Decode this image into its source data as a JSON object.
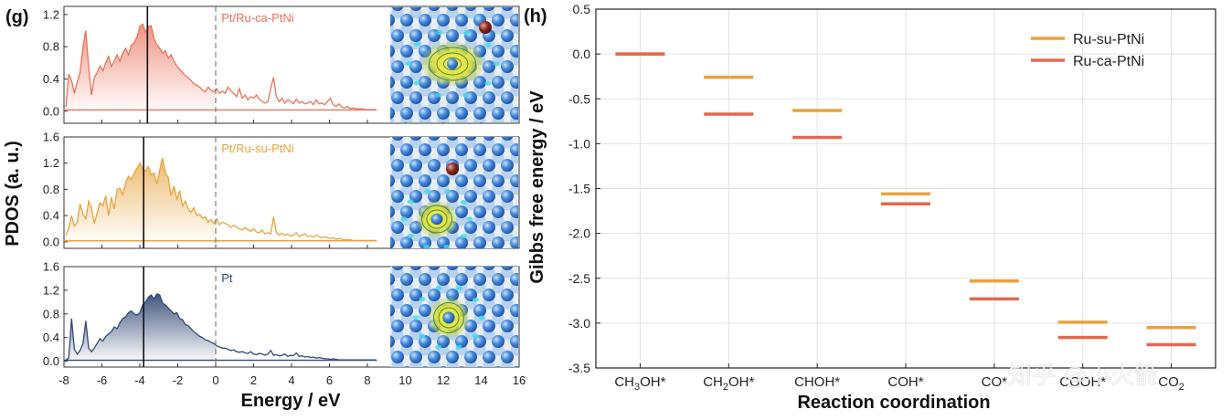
{
  "chart_data": [
    {
      "type": "line",
      "panel_label": "(g)",
      "title": "",
      "xlabel": "Energy / eV",
      "ylabel": "PDOS (a. u.)",
      "xlim": [
        -8,
        16
      ],
      "x_ticks": [
        "-8",
        "-6",
        "-4",
        "-2",
        "0",
        "2",
        "4",
        "6",
        "8",
        "10",
        "12",
        "14",
        "16"
      ],
      "fermi_level": 0,
      "subplots": [
        {
          "name": "Pt/Ru-ca-PtNi",
          "color": "#e9725a",
          "ylim": [
            -0.15,
            1.3
          ],
          "y_ticks": [
            "0.0",
            "0.4",
            "0.8",
            "1.2"
          ],
          "d_band_center": -3.6,
          "x": [
            -7.9,
            -7.75,
            -7.6,
            -7.45,
            -7.3,
            -7.15,
            -7,
            -6.85,
            -6.7,
            -6.55,
            -6.4,
            -6.25,
            -6.1,
            -5.95,
            -5.8,
            -5.65,
            -5.5,
            -5.35,
            -5.2,
            -5.05,
            -4.9,
            -4.75,
            -4.6,
            -4.45,
            -4.3,
            -4.15,
            -4,
            -3.85,
            -3.7,
            -3.55,
            -3.4,
            -3.25,
            -3.1,
            -2.95,
            -2.8,
            -2.65,
            -2.5,
            -2.35,
            -2.2,
            -2.05,
            -1.9,
            -1.75,
            -1.6,
            -1.45,
            -1.3,
            -1.15,
            -1,
            -0.85,
            -0.7,
            -0.55,
            -0.4,
            -0.25,
            -0.1,
            0.05,
            0.2,
            0.35,
            0.5,
            0.65,
            0.8,
            0.95,
            1.1,
            1.25,
            1.4,
            1.55,
            1.7,
            1.85,
            2,
            2.15,
            2.3,
            2.45,
            2.6,
            2.75,
            2.9,
            3.05,
            3.2,
            3.35,
            3.5,
            3.65,
            3.8,
            3.95,
            4.1,
            4.25,
            4.4,
            4.55,
            4.7,
            4.85,
            5,
            5.15,
            5.3,
            5.45,
            5.6,
            5.75,
            5.9,
            6.05,
            6.2,
            6.35,
            6.5,
            6.65,
            6.8,
            6.95,
            7.1,
            7.25,
            7.4,
            7.55,
            7.7,
            7.85,
            8,
            8.15,
            8.3,
            8.45
          ],
          "y": [
            0.05,
            0.46,
            0.38,
            0.22,
            0.36,
            0.48,
            0.8,
            1.0,
            0.55,
            0.2,
            0.42,
            0.48,
            0.56,
            0.5,
            0.6,
            0.68,
            0.55,
            0.62,
            0.7,
            0.62,
            0.72,
            0.78,
            0.7,
            0.82,
            0.85,
            0.92,
            1.05,
            1.08,
            0.98,
            1.05,
            1.06,
            0.9,
            0.82,
            0.78,
            0.72,
            0.75,
            0.66,
            0.7,
            0.62,
            0.56,
            0.52,
            0.48,
            0.44,
            0.42,
            0.38,
            0.34,
            0.32,
            0.3,
            0.26,
            0.24,
            0.3,
            0.26,
            0.24,
            0.28,
            0.22,
            0.25,
            0.22,
            0.3,
            0.25,
            0.22,
            0.18,
            0.28,
            0.16,
            0.2,
            0.14,
            0.18,
            0.16,
            0.2,
            0.15,
            0.12,
            0.1,
            0.12,
            0.28,
            0.42,
            0.18,
            0.12,
            0.16,
            0.1,
            0.14,
            0.12,
            0.09,
            0.15,
            0.1,
            0.12,
            0.09,
            0.1,
            0.12,
            0.08,
            0.14,
            0.09,
            0.1,
            0.08,
            0.12,
            0.16,
            0.08,
            0.06,
            0.09,
            0.05,
            0.04,
            0.06,
            0.03,
            0.04,
            0.03,
            0.03,
            0.03,
            0.02,
            0.02,
            0.02,
            0.02,
            0.02
          ],
          "baseline_end_x": 8.5
        },
        {
          "name": "Pt/Ru-su-PtNi",
          "color": "#e8a33d",
          "ylim": [
            -0.1,
            1.6
          ],
          "y_ticks": [
            "0.0",
            "0.4",
            "0.8",
            "1.2",
            "1.6"
          ],
          "d_band_center": -3.8,
          "x": [
            -7.9,
            -7.75,
            -7.6,
            -7.45,
            -7.3,
            -7.15,
            -7,
            -6.85,
            -6.7,
            -6.55,
            -6.4,
            -6.25,
            -6.1,
            -5.95,
            -5.8,
            -5.65,
            -5.5,
            -5.35,
            -5.2,
            -5.05,
            -4.9,
            -4.75,
            -4.6,
            -4.45,
            -4.3,
            -4.15,
            -4,
            -3.85,
            -3.7,
            -3.55,
            -3.4,
            -3.25,
            -3.1,
            -2.95,
            -2.8,
            -2.65,
            -2.5,
            -2.35,
            -2.2,
            -2.05,
            -1.9,
            -1.75,
            -1.6,
            -1.45,
            -1.3,
            -1.15,
            -1,
            -0.85,
            -0.7,
            -0.55,
            -0.4,
            -0.25,
            -0.1,
            0.05,
            0.2,
            0.35,
            0.5,
            0.65,
            0.8,
            0.95,
            1.1,
            1.25,
            1.4,
            1.55,
            1.7,
            1.85,
            2,
            2.15,
            2.3,
            2.45,
            2.6,
            2.75,
            2.9,
            3.05,
            3.2,
            3.35,
            3.5,
            3.65,
            3.8,
            3.95,
            4.1,
            4.25,
            4.4,
            4.55,
            4.7,
            4.85,
            5,
            5.15,
            5.3,
            5.45,
            5.6,
            5.75,
            5.9,
            6.05,
            6.2,
            6.35,
            6.5,
            6.65,
            6.8,
            6.95,
            7.1,
            7.25,
            7.4,
            7.55,
            7.7,
            7.85,
            8,
            8.15,
            8.3,
            8.45
          ],
          "y": [
            0.1,
            0.2,
            0.4,
            0.24,
            0.3,
            0.58,
            0.42,
            0.35,
            0.62,
            0.52,
            0.28,
            0.44,
            0.6,
            0.55,
            0.7,
            0.4,
            0.68,
            0.5,
            0.8,
            0.82,
            0.72,
            0.9,
            1.0,
            0.95,
            1.05,
            1.12,
            1.2,
            1.12,
            1.08,
            1.15,
            1.02,
            1.05,
            0.88,
            1.1,
            1.28,
            1.05,
            0.98,
            0.7,
            0.85,
            0.65,
            0.78,
            0.55,
            0.62,
            0.5,
            0.45,
            0.52,
            0.4,
            0.42,
            0.36,
            0.38,
            0.3,
            0.34,
            0.28,
            0.35,
            0.26,
            0.3,
            0.28,
            0.26,
            0.22,
            0.25,
            0.22,
            0.2,
            0.18,
            0.22,
            0.18,
            0.16,
            0.2,
            0.15,
            0.14,
            0.18,
            0.12,
            0.14,
            0.12,
            0.38,
            0.14,
            0.1,
            0.13,
            0.1,
            0.12,
            0.09,
            0.1,
            0.14,
            0.08,
            0.1,
            0.12,
            0.08,
            0.09,
            0.07,
            0.1,
            0.08,
            0.06,
            0.08,
            0.06,
            0.05,
            0.06,
            0.04,
            0.05,
            0.04,
            0.03,
            0.03,
            0.03,
            0.02,
            0.02,
            0.02,
            0.02,
            0.02,
            0.02,
            0.02,
            0.02,
            0.02
          ],
          "baseline_end_x": 8.5
        },
        {
          "name": "Pt",
          "color": "#2f4a78",
          "ylim": [
            -0.1,
            1.6
          ],
          "y_ticks": [
            "0.0",
            "0.4",
            "0.8",
            "1.2",
            "1.6"
          ],
          "d_band_center": -3.8,
          "x": [
            -7.9,
            -7.75,
            -7.6,
            -7.45,
            -7.3,
            -7.15,
            -7,
            -6.85,
            -6.7,
            -6.55,
            -6.4,
            -6.25,
            -6.1,
            -5.95,
            -5.8,
            -5.65,
            -5.5,
            -5.35,
            -5.2,
            -5.05,
            -4.9,
            -4.75,
            -4.6,
            -4.45,
            -4.3,
            -4.15,
            -4,
            -3.85,
            -3.7,
            -3.55,
            -3.4,
            -3.25,
            -3.1,
            -2.95,
            -2.8,
            -2.65,
            -2.5,
            -2.35,
            -2.2,
            -2.05,
            -1.9,
            -1.75,
            -1.6,
            -1.45,
            -1.3,
            -1.15,
            -1,
            -0.85,
            -0.7,
            -0.55,
            -0.4,
            -0.25,
            -0.1,
            0.05,
            0.2,
            0.35,
            0.5,
            0.65,
            0.8,
            0.95,
            1.1,
            1.25,
            1.4,
            1.55,
            1.7,
            1.85,
            2,
            2.15,
            2.3,
            2.45,
            2.6,
            2.75,
            2.9,
            3.05,
            3.2,
            3.35,
            3.5,
            3.65,
            3.8,
            3.95,
            4.1,
            4.25,
            4.4,
            4.55,
            4.7,
            4.85,
            5,
            5.15,
            5.3,
            5.45,
            5.6,
            5.75,
            5.9,
            6.05,
            6.2,
            6.35,
            6.5,
            6.65,
            6.8,
            6.95,
            7.1,
            7.25,
            7.4,
            7.55,
            7.7,
            7.85,
            8,
            8.15,
            8.3,
            8.45
          ],
          "y": [
            0.02,
            0.05,
            0.72,
            0.2,
            0.12,
            0.18,
            0.3,
            0.68,
            0.22,
            0.16,
            0.22,
            0.3,
            0.38,
            0.34,
            0.42,
            0.46,
            0.5,
            0.58,
            0.55,
            0.65,
            0.72,
            0.75,
            0.82,
            0.85,
            0.8,
            0.78,
            0.82,
            0.95,
            1.0,
            1.08,
            1.12,
            1.05,
            1.14,
            1.12,
            0.98,
            0.95,
            0.9,
            0.85,
            0.8,
            0.82,
            0.72,
            0.7,
            0.62,
            0.6,
            0.55,
            0.5,
            0.46,
            0.42,
            0.4,
            0.36,
            0.35,
            0.32,
            0.3,
            0.26,
            0.24,
            0.22,
            0.22,
            0.2,
            0.18,
            0.19,
            0.16,
            0.15,
            0.16,
            0.14,
            0.13,
            0.16,
            0.12,
            0.11,
            0.13,
            0.12,
            0.1,
            0.12,
            0.18,
            0.1,
            0.11,
            0.09,
            0.1,
            0.12,
            0.08,
            0.1,
            0.09,
            0.14,
            0.08,
            0.09,
            0.07,
            0.08,
            0.06,
            0.07,
            0.05,
            0.06,
            0.05,
            0.04,
            0.04,
            0.03,
            0.04,
            0.03,
            0.02,
            0.02,
            0.02,
            0.02,
            0.02,
            0.02,
            0.02,
            0.02,
            0.02,
            0.02,
            0.02,
            0.02,
            0.02,
            0.02
          ],
          "baseline_end_x": 8.5
        }
      ]
    },
    {
      "type": "line",
      "subtype": "energy-level diagram",
      "panel_label": "(h)",
      "title": "",
      "xlabel": "Reaction coordination",
      "ylabel": "Gibbs free energy / eV",
      "ylim": [
        -3.5,
        0.5
      ],
      "y_ticks": [
        "0.5",
        "0.0",
        "-0.5",
        "-1.0",
        "-1.5",
        "-2.0",
        "-2.5",
        "-3.0",
        "-3.5"
      ],
      "categories": [
        "CH3OH*",
        "CH2OH*",
        "CHOH*",
        "COH*",
        "CO*",
        "COOH*",
        "CO2"
      ],
      "category_labels": [
        {
          "main": "CH",
          "sub": "3",
          "tail": "OH*"
        },
        {
          "main": "CH",
          "sub": "2",
          "tail": "OH*"
        },
        {
          "main": "CHOH*",
          "sub": "",
          "tail": ""
        },
        {
          "main": "COH*",
          "sub": "",
          "tail": ""
        },
        {
          "main": "CO*",
          "sub": "",
          "tail": ""
        },
        {
          "main": "COOH*",
          "sub": "",
          "tail": ""
        },
        {
          "main": "CO",
          "sub": "2",
          "tail": ""
        }
      ],
      "series": [
        {
          "name": "Ru-su-PtNi",
          "color": "#e8a33d",
          "values": [
            0.0,
            -0.26,
            -0.63,
            -1.56,
            -2.53,
            -2.99,
            -3.05
          ]
        },
        {
          "name": "Ru-ca-PtNi",
          "color": "#e2694f",
          "values": [
            0.0,
            -0.67,
            -0.93,
            -1.67,
            -2.73,
            -3.16,
            -3.24
          ]
        }
      ],
      "grid": true,
      "legend_position": "top-right"
    }
  ],
  "watermark": "知乎 @小火箭"
}
